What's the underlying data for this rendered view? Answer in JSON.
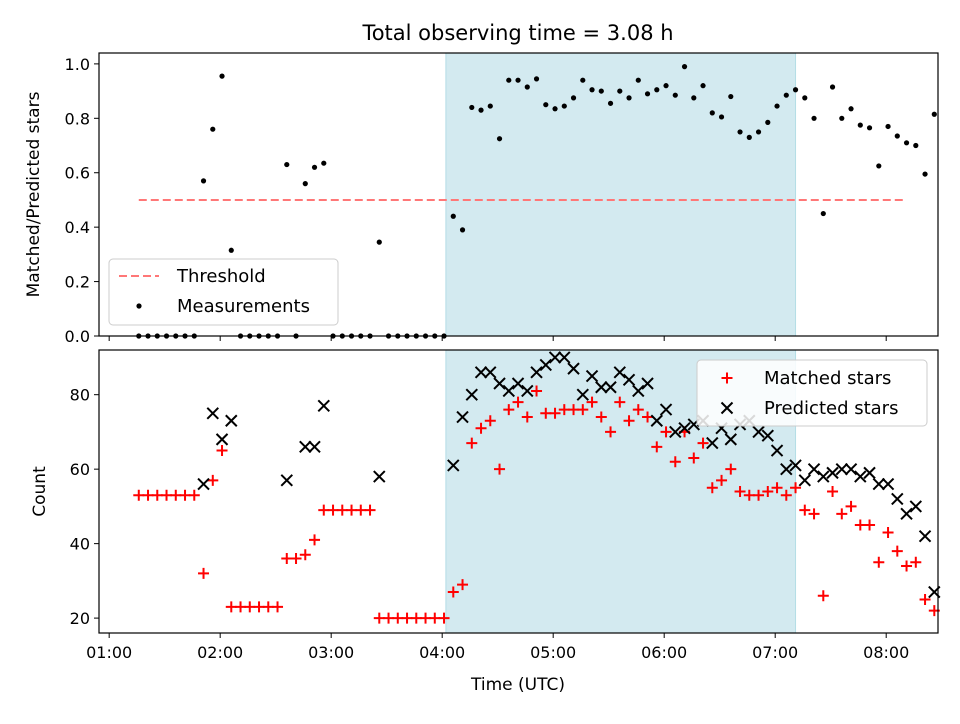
{
  "chart_data": [
    {
      "type": "scatter",
      "title": "Total observing time = 3.08 h",
      "xlabel": "",
      "ylabel": "Matched/Predicted stars",
      "xlim": [
        "01:00",
        "08:20"
      ],
      "ylim": [
        0,
        1.04
      ],
      "yticks": [
        "0.0",
        "0.2",
        "0.4",
        "0.6",
        "0.8",
        "1.0"
      ],
      "highlight_span": [
        "04:02",
        "07:11"
      ],
      "highlight_color": "#d3eaf0",
      "legend_position": "lower-left",
      "threshold": {
        "name": "Threshold",
        "value": 0.5,
        "x_start": "01:16",
        "x_end": "08:10",
        "color": "#ff7777"
      },
      "series": [
        {
          "name": "Measurements",
          "color": "#000000",
          "points": [
            [
              "01:16",
              0
            ],
            [
              "01:21",
              0
            ],
            [
              "01:26",
              0
            ],
            [
              "01:31",
              0
            ],
            [
              "01:36",
              0
            ],
            [
              "01:41",
              0
            ],
            [
              "01:46",
              0
            ],
            [
              "01:51",
              0.57
            ],
            [
              "01:56",
              0.76
            ],
            [
              "02:01",
              0.955
            ],
            [
              "02:06",
              0.315
            ],
            [
              "02:11",
              0
            ],
            [
              "02:16",
              0
            ],
            [
              "02:21",
              0
            ],
            [
              "02:26",
              0
            ],
            [
              "02:31",
              0
            ],
            [
              "02:36",
              0.63
            ],
            [
              "02:41",
              0
            ],
            [
              "02:46",
              0.56
            ],
            [
              "02:51",
              0.62
            ],
            [
              "02:56",
              0.635
            ],
            [
              "03:01",
              0
            ],
            [
              "03:06",
              0
            ],
            [
              "03:11",
              0
            ],
            [
              "03:16",
              0
            ],
            [
              "03:21",
              0
            ],
            [
              "03:26",
              0.345
            ],
            [
              "03:31",
              0
            ],
            [
              "03:36",
              0
            ],
            [
              "03:41",
              0
            ],
            [
              "03:46",
              0
            ],
            [
              "03:51",
              0
            ],
            [
              "03:56",
              0
            ],
            [
              "04:01",
              0
            ],
            [
              "04:06",
              0.44
            ],
            [
              "04:11",
              0.39
            ],
            [
              "04:16",
              0.84
            ],
            [
              "04:21",
              0.83
            ],
            [
              "04:26",
              0.845
            ],
            [
              "04:31",
              0.725
            ],
            [
              "04:36",
              0.94
            ],
            [
              "04:41",
              0.94
            ],
            [
              "04:46",
              0.915
            ],
            [
              "04:51",
              0.945
            ],
            [
              "04:56",
              0.85
            ],
            [
              "05:01",
              0.835
            ],
            [
              "05:06",
              0.845
            ],
            [
              "05:11",
              0.875
            ],
            [
              "05:16",
              0.94
            ],
            [
              "05:21",
              0.905
            ],
            [
              "05:26",
              0.9
            ],
            [
              "05:31",
              0.855
            ],
            [
              "05:36",
              0.9
            ],
            [
              "05:41",
              0.875
            ],
            [
              "05:46",
              0.94
            ],
            [
              "05:51",
              0.89
            ],
            [
              "05:56",
              0.905
            ],
            [
              "06:01",
              0.92
            ],
            [
              "06:06",
              0.885
            ],
            [
              "06:11",
              0.99
            ],
            [
              "06:16",
              0.875
            ],
            [
              "06:21",
              0.92
            ],
            [
              "06:26",
              0.82
            ],
            [
              "06:31",
              0.805
            ],
            [
              "06:36",
              0.88
            ],
            [
              "06:41",
              0.75
            ],
            [
              "06:46",
              0.73
            ],
            [
              "06:51",
              0.75
            ],
            [
              "06:56",
              0.785
            ],
            [
              "07:01",
              0.845
            ],
            [
              "07:06",
              0.885
            ],
            [
              "07:11",
              0.905
            ],
            [
              "07:16",
              0.875
            ],
            [
              "07:21",
              0.8
            ],
            [
              "07:26",
              0.45
            ],
            [
              "07:31",
              0.915
            ],
            [
              "07:36",
              0.8
            ],
            [
              "07:41",
              0.835
            ],
            [
              "07:46",
              0.775
            ],
            [
              "07:51",
              0.765
            ],
            [
              "07:56",
              0.625
            ],
            [
              "08:01",
              0.77
            ],
            [
              "08:06",
              0.735
            ],
            [
              "08:11",
              0.71
            ],
            [
              "08:16",
              0.7
            ],
            [
              "08:21",
              0.595
            ],
            [
              "08:26",
              0.815
            ]
          ]
        }
      ]
    },
    {
      "type": "scatter",
      "title": "",
      "xlabel": "Time (UTC)",
      "ylabel": "Count",
      "xlim": [
        "01:00",
        "08:20"
      ],
      "ylim": [
        16,
        92
      ],
      "xticks": [
        "01:00",
        "02:00",
        "03:00",
        "04:00",
        "05:00",
        "06:00",
        "07:00",
        "08:00"
      ],
      "yticks": [
        "20",
        "40",
        "60",
        "80"
      ],
      "highlight_span": [
        "04:02",
        "07:11"
      ],
      "highlight_color": "#d3eaf0",
      "legend_position": "upper-right",
      "series": [
        {
          "name": "Matched stars",
          "marker": "+",
          "color": "#ff0000",
          "points": [
            [
              "01:16",
              53
            ],
            [
              "01:21",
              53
            ],
            [
              "01:26",
              53
            ],
            [
              "01:31",
              53
            ],
            [
              "01:36",
              53
            ],
            [
              "01:41",
              53
            ],
            [
              "01:46",
              53
            ],
            [
              "01:51",
              32
            ],
            [
              "01:56",
              57
            ],
            [
              "02:01",
              65
            ],
            [
              "02:06",
              23
            ],
            [
              "02:11",
              23
            ],
            [
              "02:16",
              23
            ],
            [
              "02:21",
              23
            ],
            [
              "02:26",
              23
            ],
            [
              "02:31",
              23
            ],
            [
              "02:36",
              36
            ],
            [
              "02:41",
              36
            ],
            [
              "02:46",
              37
            ],
            [
              "02:51",
              41
            ],
            [
              "02:56",
              49
            ],
            [
              "03:01",
              49
            ],
            [
              "03:06",
              49
            ],
            [
              "03:11",
              49
            ],
            [
              "03:16",
              49
            ],
            [
              "03:21",
              49
            ],
            [
              "03:26",
              20
            ],
            [
              "03:31",
              20
            ],
            [
              "03:36",
              20
            ],
            [
              "03:41",
              20
            ],
            [
              "03:46",
              20
            ],
            [
              "03:51",
              20
            ],
            [
              "03:56",
              20
            ],
            [
              "04:01",
              20
            ],
            [
              "04:06",
              27
            ],
            [
              "04:11",
              29
            ],
            [
              "04:16",
              67
            ],
            [
              "04:21",
              71
            ],
            [
              "04:26",
              73
            ],
            [
              "04:31",
              60
            ],
            [
              "04:36",
              76
            ],
            [
              "04:41",
              78
            ],
            [
              "04:46",
              74
            ],
            [
              "04:51",
              81
            ],
            [
              "04:56",
              75
            ],
            [
              "05:01",
              75
            ],
            [
              "05:06",
              76
            ],
            [
              "05:11",
              76
            ],
            [
              "05:16",
              76
            ],
            [
              "05:21",
              78
            ],
            [
              "05:26",
              74
            ],
            [
              "05:31",
              70
            ],
            [
              "05:36",
              78
            ],
            [
              "05:41",
              73
            ],
            [
              "05:46",
              76
            ],
            [
              "05:51",
              74
            ],
            [
              "05:56",
              66
            ],
            [
              "06:01",
              70
            ],
            [
              "06:06",
              62
            ],
            [
              "06:11",
              70
            ],
            [
              "06:16",
              63
            ],
            [
              "06:21",
              67
            ],
            [
              "06:26",
              55
            ],
            [
              "06:31",
              57
            ],
            [
              "06:36",
              60
            ],
            [
              "06:41",
              54
            ],
            [
              "06:46",
              53
            ],
            [
              "06:51",
              53
            ],
            [
              "06:56",
              54
            ],
            [
              "07:01",
              55
            ],
            [
              "07:06",
              53
            ],
            [
              "07:11",
              55
            ],
            [
              "07:16",
              49
            ],
            [
              "07:21",
              48
            ],
            [
              "07:26",
              26
            ],
            [
              "07:31",
              54
            ],
            [
              "07:36",
              48
            ],
            [
              "07:41",
              50
            ],
            [
              "07:46",
              45
            ],
            [
              "07:51",
              45
            ],
            [
              "07:56",
              35
            ],
            [
              "08:01",
              43
            ],
            [
              "08:06",
              38
            ],
            [
              "08:11",
              34
            ],
            [
              "08:16",
              35
            ],
            [
              "08:21",
              25
            ],
            [
              "08:26",
              22
            ]
          ]
        },
        {
          "name": "Predicted stars",
          "marker": "x",
          "color": "#000000",
          "points": [
            [
              "01:51",
              56
            ],
            [
              "01:56",
              75
            ],
            [
              "02:01",
              68
            ],
            [
              "02:06",
              73
            ],
            [
              "02:36",
              57
            ],
            [
              "02:46",
              66
            ],
            [
              "02:51",
              66
            ],
            [
              "02:56",
              77
            ],
            [
              "03:26",
              58
            ],
            [
              "04:06",
              61
            ],
            [
              "04:11",
              74
            ],
            [
              "04:16",
              80
            ],
            [
              "04:21",
              86
            ],
            [
              "04:26",
              86
            ],
            [
              "04:31",
              83
            ],
            [
              "04:36",
              81
            ],
            [
              "04:41",
              83
            ],
            [
              "04:46",
              81
            ],
            [
              "04:51",
              86
            ],
            [
              "04:56",
              88
            ],
            [
              "05:01",
              90
            ],
            [
              "05:06",
              90
            ],
            [
              "05:11",
              87
            ],
            [
              "05:16",
              80
            ],
            [
              "05:21",
              85
            ],
            [
              "05:26",
              82
            ],
            [
              "05:31",
              82
            ],
            [
              "05:36",
              86
            ],
            [
              "05:41",
              84
            ],
            [
              "05:46",
              81
            ],
            [
              "05:51",
              83
            ],
            [
              "05:56",
              73
            ],
            [
              "06:01",
              76
            ],
            [
              "06:06",
              70
            ],
            [
              "06:11",
              71
            ],
            [
              "06:16",
              72
            ],
            [
              "06:21",
              73
            ],
            [
              "06:26",
              67
            ],
            [
              "06:31",
              71
            ],
            [
              "06:36",
              68
            ],
            [
              "06:41",
              72
            ],
            [
              "06:46",
              73
            ],
            [
              "06:51",
              70
            ],
            [
              "06:56",
              69
            ],
            [
              "07:01",
              65
            ],
            [
              "07:06",
              60
            ],
            [
              "07:11",
              61
            ],
            [
              "07:16",
              57
            ],
            [
              "07:21",
              60
            ],
            [
              "07:26",
              58
            ],
            [
              "07:31",
              59
            ],
            [
              "07:36",
              60
            ],
            [
              "07:41",
              60
            ],
            [
              "07:46",
              58
            ],
            [
              "07:51",
              59
            ],
            [
              "07:56",
              56
            ],
            [
              "08:01",
              56
            ],
            [
              "08:06",
              52
            ],
            [
              "08:11",
              48
            ],
            [
              "08:16",
              50
            ],
            [
              "08:21",
              42
            ],
            [
              "08:26",
              27
            ]
          ]
        }
      ]
    }
  ]
}
